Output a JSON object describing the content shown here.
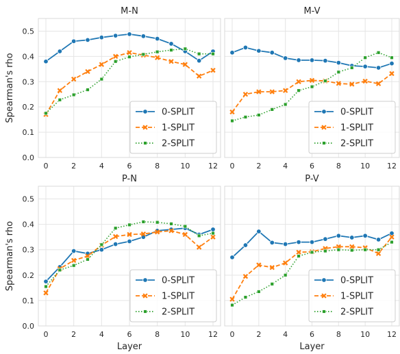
{
  "chart_data": [
    {
      "type": "line",
      "title": "M-N",
      "xlabel": "",
      "ylabel": "Spearman's rho",
      "x": [
        0,
        1,
        2,
        3,
        4,
        5,
        6,
        7,
        8,
        9,
        10,
        11,
        12
      ],
      "xticks": [
        0,
        2,
        4,
        6,
        8,
        10,
        12
      ],
      "ylim": [
        0.0,
        0.55
      ],
      "yticks": [
        0.0,
        0.1,
        0.2,
        0.3,
        0.4,
        0.5
      ],
      "grid": true,
      "legend_position": "bottom-right",
      "series": [
        {
          "name": "0-SPLIT",
          "values": [
            0.38,
            0.42,
            0.46,
            0.465,
            0.475,
            0.482,
            0.488,
            0.48,
            0.47,
            0.45,
            0.42,
            0.383,
            0.42
          ]
        },
        {
          "name": "1-SPLIT",
          "values": [
            0.17,
            0.265,
            0.31,
            0.34,
            0.368,
            0.4,
            0.415,
            0.405,
            0.395,
            0.38,
            0.368,
            0.322,
            0.345
          ]
        },
        {
          "name": "2-SPLIT",
          "values": [
            0.175,
            0.228,
            0.248,
            0.268,
            0.31,
            0.38,
            0.398,
            0.408,
            0.418,
            0.425,
            0.43,
            0.41,
            0.41
          ]
        }
      ]
    },
    {
      "type": "line",
      "title": "M-V",
      "xlabel": "",
      "ylabel": "",
      "x": [
        0,
        1,
        2,
        3,
        4,
        5,
        6,
        7,
        8,
        9,
        10,
        11,
        12
      ],
      "xticks": [
        0,
        2,
        4,
        6,
        8,
        10,
        12
      ],
      "ylim": [
        0.0,
        0.55
      ],
      "yticks": [
        0.0,
        0.1,
        0.2,
        0.3,
        0.4,
        0.5
      ],
      "grid": true,
      "legend_position": "bottom-right",
      "series": [
        {
          "name": "0-SPLIT",
          "values": [
            0.415,
            0.435,
            0.422,
            0.415,
            0.393,
            0.385,
            0.385,
            0.383,
            0.375,
            0.363,
            0.36,
            0.355,
            0.372
          ]
        },
        {
          "name": "1-SPLIT",
          "values": [
            0.18,
            0.25,
            0.26,
            0.26,
            0.265,
            0.3,
            0.305,
            0.303,
            0.293,
            0.29,
            0.302,
            0.292,
            0.332
          ]
        },
        {
          "name": "2-SPLIT",
          "values": [
            0.145,
            0.16,
            0.168,
            0.19,
            0.21,
            0.265,
            0.28,
            0.303,
            0.338,
            0.355,
            0.395,
            0.415,
            0.395
          ]
        }
      ]
    },
    {
      "type": "line",
      "title": "P-N",
      "xlabel": "Layer",
      "ylabel": "Spearman's rho",
      "x": [
        0,
        1,
        2,
        3,
        4,
        5,
        6,
        7,
        8,
        9,
        10,
        11,
        12
      ],
      "xticks": [
        0,
        2,
        4,
        6,
        8,
        10,
        12
      ],
      "ylim": [
        0.0,
        0.55
      ],
      "yticks": [
        0.0,
        0.1,
        0.2,
        0.3,
        0.4,
        0.5
      ],
      "grid": true,
      "legend_position": "bottom-right",
      "series": [
        {
          "name": "0-SPLIT",
          "values": [
            0.175,
            0.232,
            0.295,
            0.285,
            0.3,
            0.322,
            0.333,
            0.35,
            0.375,
            0.38,
            0.385,
            0.36,
            0.38
          ]
        },
        {
          "name": "1-SPLIT",
          "values": [
            0.13,
            0.225,
            0.258,
            0.275,
            0.318,
            0.352,
            0.36,
            0.362,
            0.37,
            0.375,
            0.36,
            0.31,
            0.35
          ]
        },
        {
          "name": "2-SPLIT",
          "values": [
            0.155,
            0.22,
            0.238,
            0.262,
            0.32,
            0.385,
            0.398,
            0.41,
            0.408,
            0.402,
            0.392,
            0.355,
            0.365
          ]
        }
      ]
    },
    {
      "type": "line",
      "title": "P-V",
      "xlabel": "Layer",
      "ylabel": "",
      "x": [
        0,
        1,
        2,
        3,
        4,
        5,
        6,
        7,
        8,
        9,
        10,
        11,
        12
      ],
      "xticks": [
        0,
        2,
        4,
        6,
        8,
        10,
        12
      ],
      "ylim": [
        0.0,
        0.55
      ],
      "yticks": [
        0.0,
        0.1,
        0.2,
        0.3,
        0.4,
        0.5
      ],
      "grid": true,
      "legend_position": "bottom-right",
      "series": [
        {
          "name": "0-SPLIT",
          "values": [
            0.27,
            0.318,
            0.372,
            0.328,
            0.322,
            0.33,
            0.33,
            0.342,
            0.355,
            0.348,
            0.355,
            0.34,
            0.365
          ]
        },
        {
          "name": "1-SPLIT",
          "values": [
            0.105,
            0.195,
            0.24,
            0.23,
            0.248,
            0.29,
            0.292,
            0.305,
            0.312,
            0.312,
            0.308,
            0.285,
            0.35
          ]
        },
        {
          "name": "2-SPLIT",
          "values": [
            0.082,
            0.113,
            0.135,
            0.165,
            0.2,
            0.275,
            0.29,
            0.295,
            0.3,
            0.298,
            0.3,
            0.3,
            0.33
          ]
        }
      ]
    }
  ],
  "style": {
    "colors": [
      "#1f77b4",
      "#ff7f0e",
      "#2ca02c"
    ],
    "panel_background": "#ffffff",
    "grid_color": "#e5e5e5",
    "frame_color": "#d9d9d9"
  }
}
